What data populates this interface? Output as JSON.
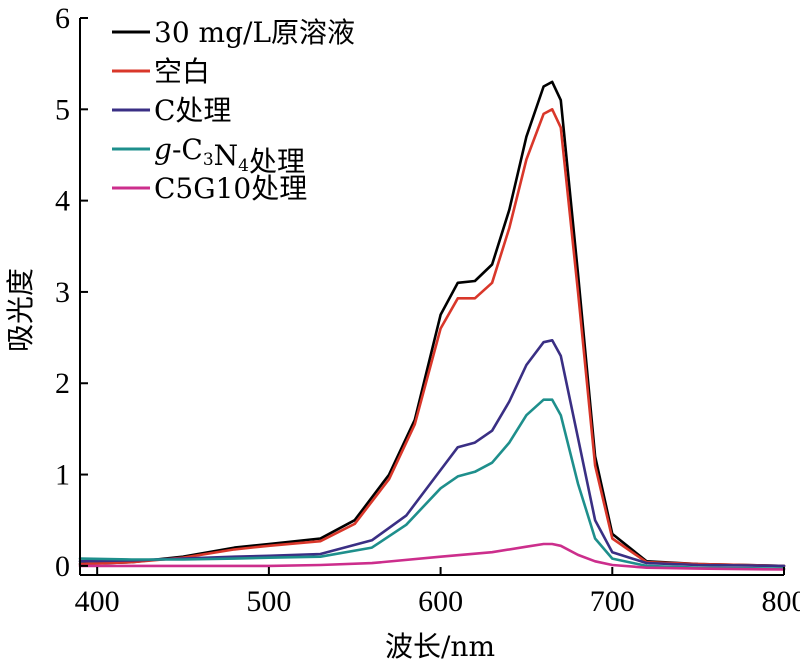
{
  "chart_data": {
    "type": "line",
    "title": "",
    "xlabel": "波长/nm",
    "ylabel": "吸光度",
    "xlim": [
      390,
      800
    ],
    "ylim": [
      -0.1,
      6
    ],
    "xticks": [
      400,
      500,
      600,
      700,
      800
    ],
    "yticks": [
      0,
      1,
      2,
      3,
      4,
      5,
      6
    ],
    "xtick_labels": [
      "400",
      "500",
      "600",
      "700",
      "800"
    ],
    "ytick_labels": [
      "0",
      "1",
      "2",
      "3",
      "4",
      "5",
      "6"
    ],
    "grid": false,
    "legend_position": "top-left",
    "series": [
      {
        "name": "30 mg/L原溶液",
        "color": "#000000",
        "x": [
          390,
          420,
          450,
          480,
          500,
          530,
          550,
          570,
          585,
          600,
          610,
          620,
          630,
          640,
          650,
          660,
          665,
          670,
          680,
          690,
          700,
          720,
          750,
          800
        ],
        "y": [
          0.02,
          0.04,
          0.1,
          0.2,
          0.24,
          0.3,
          0.5,
          1.0,
          1.6,
          2.75,
          3.1,
          3.12,
          3.3,
          3.9,
          4.7,
          5.25,
          5.3,
          5.1,
          3.2,
          1.2,
          0.35,
          0.05,
          0.02,
          0.0
        ]
      },
      {
        "name": "空白",
        "color": "#d9372a",
        "x": [
          390,
          420,
          450,
          480,
          500,
          530,
          550,
          570,
          585,
          600,
          610,
          620,
          630,
          640,
          650,
          660,
          665,
          670,
          680,
          690,
          700,
          720,
          750,
          800
        ],
        "y": [
          0.02,
          0.04,
          0.09,
          0.18,
          0.22,
          0.27,
          0.46,
          0.95,
          1.55,
          2.6,
          2.93,
          2.93,
          3.1,
          3.7,
          4.45,
          4.95,
          5.0,
          4.8,
          3.0,
          1.1,
          0.3,
          0.04,
          0.02,
          0.0
        ]
      },
      {
        "name": "C处理",
        "color": "#3a2f84",
        "x": [
          390,
          420,
          450,
          480,
          500,
          530,
          560,
          580,
          600,
          610,
          620,
          630,
          640,
          650,
          660,
          665,
          670,
          680,
          690,
          700,
          720,
          750,
          800
        ],
        "y": [
          0.05,
          0.06,
          0.08,
          0.1,
          0.11,
          0.13,
          0.28,
          0.55,
          1.05,
          1.3,
          1.35,
          1.48,
          1.8,
          2.2,
          2.45,
          2.47,
          2.3,
          1.4,
          0.5,
          0.15,
          0.03,
          0.01,
          0.0
        ]
      },
      {
        "name": "g-C3N4处理",
        "name_parts": {
          "italic": "g",
          "main": "-C",
          "sub1": "3",
          "mid": "N",
          "sub2": "4",
          "tail": "处理"
        },
        "color": "#1e8f8c",
        "x": [
          390,
          420,
          450,
          480,
          500,
          530,
          560,
          580,
          600,
          610,
          620,
          630,
          640,
          650,
          660,
          665,
          670,
          680,
          690,
          700,
          720,
          750,
          800
        ],
        "y": [
          0.08,
          0.07,
          0.07,
          0.08,
          0.09,
          0.1,
          0.2,
          0.45,
          0.85,
          0.98,
          1.03,
          1.13,
          1.35,
          1.65,
          1.82,
          1.82,
          1.65,
          0.9,
          0.3,
          0.08,
          0.0,
          -0.02,
          -0.03
        ]
      },
      {
        "name": "C5G10处理",
        "color": "#cc2e8c",
        "x": [
          390,
          450,
          500,
          530,
          560,
          600,
          630,
          650,
          660,
          665,
          670,
          680,
          690,
          700,
          720,
          750,
          800
        ],
        "y": [
          0.0,
          0.0,
          0.0,
          0.01,
          0.03,
          0.1,
          0.15,
          0.21,
          0.24,
          0.24,
          0.22,
          0.12,
          0.05,
          0.01,
          -0.02,
          -0.03,
          -0.04
        ]
      }
    ]
  }
}
